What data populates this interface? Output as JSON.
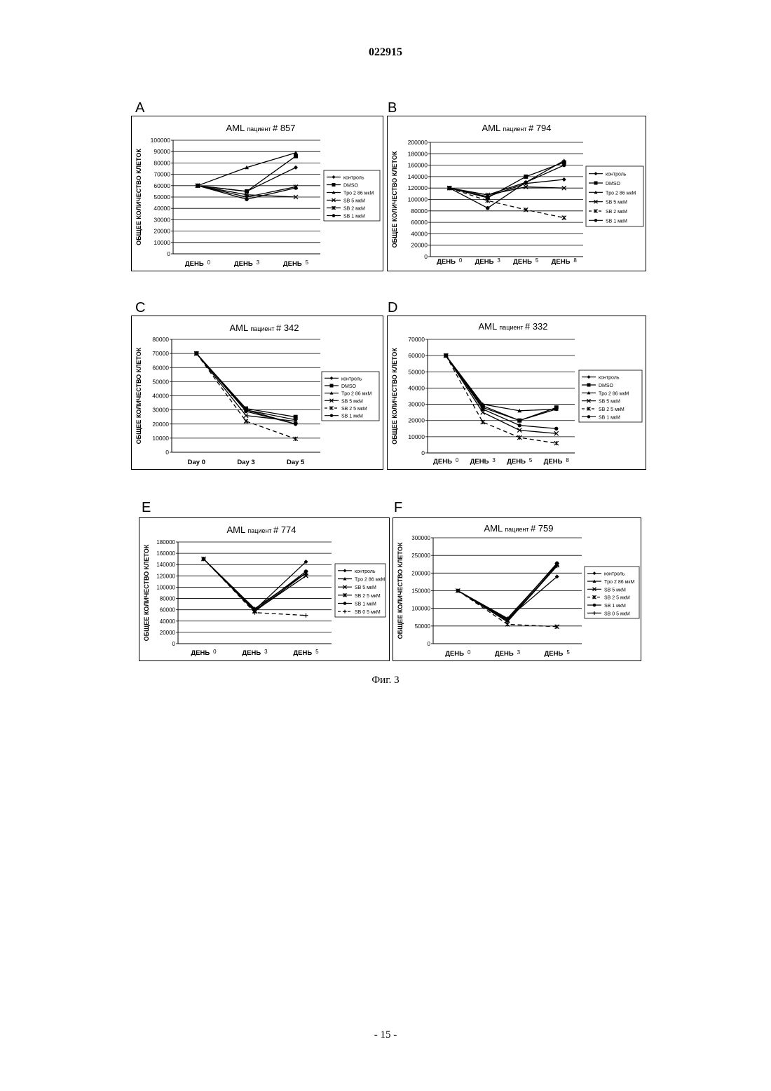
{
  "page": {
    "header": "022915",
    "caption": "Фиг. 3",
    "page_number": "- 15 -"
  },
  "chart_data": [
    {
      "panel": "A",
      "type": "line",
      "title_main": "AML",
      "title_sub": "пациент",
      "title_num": "# 857",
      "ylabel": "ОБЩЕЕ КОЛИЧЕСТВО КЛЕТОК",
      "ylim": [
        0,
        100000
      ],
      "yticks": [
        0,
        10000,
        20000,
        30000,
        40000,
        50000,
        60000,
        70000,
        80000,
        90000,
        100000
      ],
      "categories": [
        {
          "label": "ДЕНЬ",
          "num": "0"
        },
        {
          "label": "ДЕНЬ",
          "num": "3"
        },
        {
          "label": "ДЕНЬ",
          "num": "5"
        }
      ],
      "grid": true,
      "legend_position": "right",
      "series": [
        {
          "name": "контроль",
          "marker": "diamond",
          "dash": "",
          "values": [
            60000,
            55000,
            76000
          ]
        },
        {
          "name": "DMSO",
          "marker": "square",
          "dash": "",
          "values": [
            60000,
            55000,
            86000
          ]
        },
        {
          "name": "Tpo 2 86 мкМ",
          "marker": "triangle",
          "dash": "",
          "values": [
            60000,
            76000,
            89000
          ]
        },
        {
          "name": "SB 5 мкМ",
          "marker": "x",
          "dash": "",
          "values": [
            60000,
            52000,
            50000
          ]
        },
        {
          "name": "SB 2 мкМ",
          "marker": "star",
          "dash": "",
          "values": [
            60000,
            50000,
            59000
          ]
        },
        {
          "name": "SB 1 мкМ",
          "marker": "circle",
          "dash": "",
          "values": [
            60000,
            48000,
            58000
          ]
        }
      ]
    },
    {
      "panel": "B",
      "type": "line",
      "title_main": "AML",
      "title_sub": "пациент",
      "title_num": "# 794",
      "ylabel": "ОБЩЕЕ КОЛИЧЕСТВО КЛЕТОК",
      "ylim": [
        0,
        200000
      ],
      "yticks": [
        0,
        20000,
        40000,
        60000,
        80000,
        100000,
        120000,
        140000,
        160000,
        180000,
        200000
      ],
      "categories": [
        {
          "label": "ДЕНЬ",
          "num": "0"
        },
        {
          "label": "ДЕНЬ",
          "num": "3"
        },
        {
          "label": "ДЕНЬ",
          "num": "5"
        },
        {
          "label": "ДЕНЬ",
          "num": "8"
        }
      ],
      "grid": true,
      "legend_position": "right",
      "series": [
        {
          "name": "контроль",
          "marker": "diamond",
          "dash": "",
          "values": [
            120000,
            105000,
            128000,
            135000
          ]
        },
        {
          "name": "DMSO",
          "marker": "square",
          "dash": "",
          "values": [
            120000,
            103000,
            140000,
            165000
          ]
        },
        {
          "name": "Tpo 2 86 мкМ",
          "marker": "triangle",
          "dash": "",
          "values": [
            120000,
            108000,
            130000,
            168000
          ]
        },
        {
          "name": "SB 5 мкМ",
          "marker": "x",
          "dash": "",
          "values": [
            120000,
            108000,
            122000,
            120000
          ]
        },
        {
          "name": "SB 2 мкМ",
          "marker": "star",
          "dash": "6,4",
          "values": [
            120000,
            98000,
            82000,
            68000
          ]
        },
        {
          "name": "SB 1 мкМ",
          "marker": "circle",
          "dash": "",
          "values": [
            120000,
            85000,
            130000,
            160000
          ]
        }
      ]
    },
    {
      "panel": "C",
      "type": "line",
      "title_main": "AML",
      "title_sub": "пациент",
      "title_num": "# 342",
      "ylabel": "ОБЩЕЕ КОЛИЧЕСТВО КЛЕТОК",
      "ylim": [
        0,
        80000
      ],
      "yticks": [
        0,
        10000,
        20000,
        30000,
        40000,
        50000,
        60000,
        70000,
        80000
      ],
      "categories": [
        {
          "label": "Day 0",
          "num": ""
        },
        {
          "label": "Day 3",
          "num": ""
        },
        {
          "label": "Day 5",
          "num": ""
        }
      ],
      "grid": true,
      "legend_position": "right",
      "series": [
        {
          "name": "контроль",
          "marker": "diamond",
          "dash": "",
          "values": [
            70000,
            30000,
            20000
          ]
        },
        {
          "name": "DMSO",
          "marker": "square",
          "dash": "",
          "values": [
            70000,
            31000,
            25000
          ]
        },
        {
          "name": "Tpo 2 86 мкМ",
          "marker": "triangle",
          "dash": "",
          "values": [
            70000,
            30000,
            23000
          ]
        },
        {
          "name": "SB 5 мкМ",
          "marker": "x",
          "dash": "",
          "values": [
            70000,
            26000,
            22000
          ]
        },
        {
          "name": "SB 2 5 мкМ",
          "marker": "star",
          "dash": "6,4",
          "values": [
            70000,
            22000,
            9500
          ]
        },
        {
          "name": "SB 1 мкМ",
          "marker": "circle",
          "dash": "",
          "values": [
            70000,
            29000,
            20000
          ]
        }
      ]
    },
    {
      "panel": "D",
      "type": "line",
      "title_main": "AML",
      "title_sub": "пациент",
      "title_num": "# 332",
      "ylabel": "ОБЩЕЕ КОЛИЧЕСТВО КЛЕТОК",
      "ylim": [
        0,
        70000
      ],
      "yticks": [
        0,
        10000,
        20000,
        30000,
        40000,
        50000,
        60000,
        70000
      ],
      "categories": [
        {
          "label": "ДЕНЬ",
          "num": "0"
        },
        {
          "label": "ДЕНЬ",
          "num": "3"
        },
        {
          "label": "ДЕНЬ",
          "num": "5"
        },
        {
          "label": "ДЕНЬ",
          "num": "8"
        }
      ],
      "grid": true,
      "legend_position": "right",
      "series": [
        {
          "name": "контроль",
          "marker": "diamond",
          "dash": "",
          "values": [
            60000,
            28000,
            20000,
            27000
          ]
        },
        {
          "name": "DMSO",
          "marker": "square",
          "dash": "",
          "values": [
            60000,
            29000,
            20000,
            28000
          ]
        },
        {
          "name": "Tpo 2 86 мкМ",
          "marker": "triangle",
          "dash": "",
          "values": [
            60000,
            30000,
            26000,
            27000
          ]
        },
        {
          "name": "SB 5 мкМ",
          "marker": "x",
          "dash": "",
          "values": [
            60000,
            25000,
            14000,
            12000
          ]
        },
        {
          "name": "SB 2 5 мкМ",
          "marker": "star",
          "dash": "6,4",
          "values": [
            60000,
            19000,
            9500,
            6000
          ]
        },
        {
          "name": "SB 1 мкМ",
          "marker": "circle",
          "dash": "",
          "values": [
            60000,
            27000,
            17000,
            15000
          ]
        }
      ]
    },
    {
      "panel": "E",
      "type": "line",
      "title_main": "AML",
      "title_sub": "пациент",
      "title_num": "# 774",
      "ylabel": "ОБЩЕЕ КОЛИЧЕСТВО КЛЕТОК",
      "ylim": [
        0,
        180000
      ],
      "yticks": [
        0,
        20000,
        40000,
        60000,
        80000,
        100000,
        120000,
        140000,
        160000,
        180000
      ],
      "categories": [
        {
          "label": "ДЕНЬ",
          "num": "0"
        },
        {
          "label": "ДЕНЬ",
          "num": "3"
        },
        {
          "label": "ДЕНЬ",
          "num": "5"
        }
      ],
      "grid": true,
      "legend_position": "right",
      "series": [
        {
          "name": "контроль",
          "marker": "diamond",
          "dash": "",
          "values": [
            150000,
            60000,
            145000
          ]
        },
        {
          "name": "Tpo 2 86 мкМ",
          "marker": "triangle",
          "dash": "",
          "values": [
            150000,
            62000,
            125000
          ]
        },
        {
          "name": "SB 5 мкМ",
          "marker": "x",
          "dash": "",
          "values": [
            150000,
            58000,
            120000
          ]
        },
        {
          "name": "SB 2 5 мкМ",
          "marker": "star",
          "dash": "",
          "values": [
            150000,
            57000,
            125000
          ]
        },
        {
          "name": "SB 1 мкМ",
          "marker": "circle",
          "dash": "",
          "values": [
            150000,
            59000,
            128000
          ]
        },
        {
          "name": "SB 0 5 мкМ",
          "marker": "plus",
          "dash": "6,4",
          "values": [
            150000,
            55000,
            50000
          ]
        }
      ]
    },
    {
      "panel": "F",
      "type": "line",
      "title_main": "AML",
      "title_sub": "пациент",
      "title_num": "# 759",
      "ylabel": "ОБЩЕЕ КОЛИЧЕСТВО КЛЕТОК",
      "ylim": [
        0,
        300000
      ],
      "yticks": [
        0,
        50000,
        100000,
        150000,
        200000,
        250000,
        300000
      ],
      "categories": [
        {
          "label": "ДЕНЬ",
          "num": "0"
        },
        {
          "label": "ДЕНЬ",
          "num": "3"
        },
        {
          "label": "ДЕНЬ",
          "num": "5"
        }
      ],
      "grid": true,
      "legend_position": "right",
      "series": [
        {
          "name": "контроль",
          "marker": "diamond",
          "dash": "",
          "values": [
            150000,
            70000,
            190000
          ]
        },
        {
          "name": "Tpo 2 86 мкМ",
          "marker": "triangle",
          "dash": "",
          "values": [
            150000,
            72000,
            225000
          ]
        },
        {
          "name": "SB 5 мкМ",
          "marker": "x",
          "dash": "",
          "values": [
            150000,
            65000,
            222000
          ]
        },
        {
          "name": "SB 2 5 мкМ",
          "marker": "star",
          "dash": "6,4",
          "values": [
            150000,
            55000,
            48000
          ]
        },
        {
          "name": "SB 1 мкМ",
          "marker": "circle",
          "dash": "",
          "values": [
            150000,
            68000,
            228000
          ]
        },
        {
          "name": "SB 0 5 мкМ",
          "marker": "plus",
          "dash": "",
          "values": [
            150000,
            62000,
            220000
          ]
        }
      ]
    }
  ]
}
